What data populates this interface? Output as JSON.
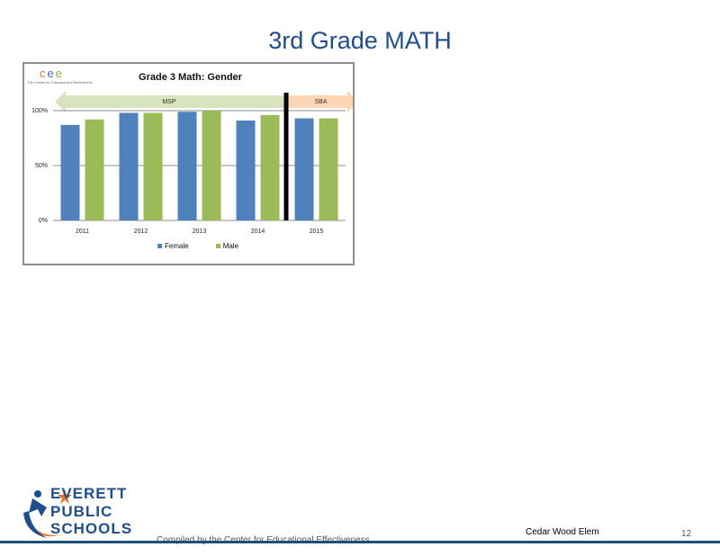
{
  "slide": {
    "title": "3rd Grade MATH",
    "footer_credit": "Compiled by the Center for Educational Effectiveness",
    "school_name": "Cedar Wood Elem",
    "page_number": "12"
  },
  "logos": {
    "cee_letters": [
      "c",
      "e",
      "e"
    ],
    "cee_subtitle": "The Center for Educational Effectiveness",
    "district_lines": [
      "EVERETT",
      "PUBLIC",
      "SCHOOLS"
    ]
  },
  "chart_data": {
    "type": "bar",
    "title": "Grade 3 Math: Gender",
    "categories": [
      "2011",
      "2012",
      "2013",
      "2014",
      "2015"
    ],
    "series": [
      {
        "name": "Female",
        "color": "#4f81bd",
        "values": [
          87,
          98,
          99,
          91,
          93
        ]
      },
      {
        "name": "Male",
        "color": "#9bbb59",
        "values": [
          92,
          98,
          100,
          96,
          93
        ]
      }
    ],
    "ylim": [
      0,
      100
    ],
    "yticks": [
      {
        "value": 0,
        "label": "0%"
      },
      {
        "value": 50,
        "label": "50%"
      },
      {
        "value": 100,
        "label": "100%"
      }
    ],
    "assessment_periods": [
      {
        "label": "MSP",
        "from": "2011",
        "to": "2014",
        "color": "#d7e4bd"
      },
      {
        "label": "SBA",
        "from": "2015",
        "to": "2015",
        "color": "#fcd5b5"
      }
    ],
    "divider_between": [
      "2014",
      "2015"
    ],
    "grid": true,
    "legend": "bottom"
  }
}
